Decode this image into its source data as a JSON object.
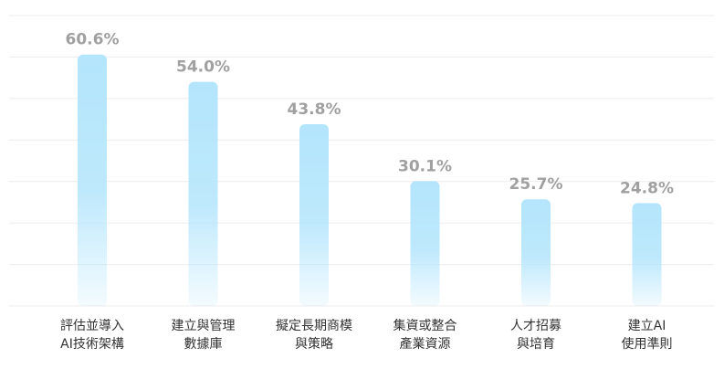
{
  "chart_data": {
    "type": "bar",
    "categories": [
      [
        "評估並導入",
        "AI技術架構"
      ],
      [
        "建立與管理",
        "數據庫"
      ],
      [
        "擬定長期商模",
        "與策略"
      ],
      [
        "集資或整合",
        "產業資源"
      ],
      [
        "人才招募",
        "與培育"
      ],
      [
        "建立AI",
        "使用準則"
      ]
    ],
    "values": [
      60.6,
      54.0,
      43.8,
      30.1,
      25.7,
      24.8
    ],
    "value_labels": [
      "60.6%",
      "54.0%",
      "43.8%",
      "30.1%",
      "25.7%",
      "24.8%"
    ],
    "color": "#b3e5fc",
    "ylim": [
      0,
      70
    ],
    "yticks": [
      0,
      10,
      20,
      30,
      40,
      50,
      60,
      70
    ],
    "grid": true
  }
}
